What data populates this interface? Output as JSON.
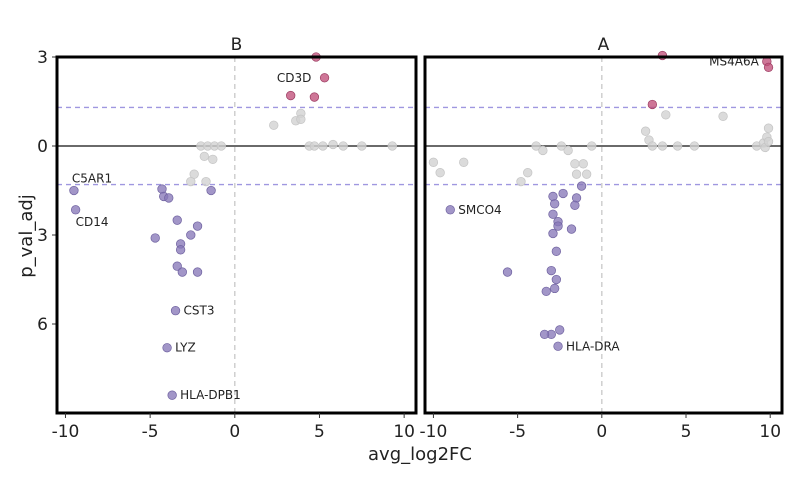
{
  "chart_data": {
    "type": "scatter",
    "xlabel": "avg_log2FC",
    "ylabel": "p_val_adj",
    "xlim": [
      -10.5,
      10.7
    ],
    "ylim": [
      -3.0,
      9.0
    ],
    "x_ticks": [
      -10,
      -5,
      0,
      5,
      10
    ],
    "x_tick_labels": [
      "-10",
      "-5",
      "0",
      "5",
      "10"
    ],
    "y_ticks": [
      -3,
      0,
      3,
      6
    ],
    "y_tick_labels": [
      "3",
      "0",
      "3",
      "6"
    ],
    "reference_lines": {
      "horizontal_dashed": [
        -1.3,
        1.3
      ],
      "vertical_dashed": 0,
      "horizontal_solid": 0
    },
    "colors": {
      "up": "#c0507a",
      "down": "#8878b8",
      "ns": "#d2d2d2",
      "threshold": "#9f97e0",
      "zero_line": "#999999"
    },
    "facets": [
      {
        "title": "B",
        "points": [
          {
            "x": 4.8,
            "y": -3.0,
            "g": "up"
          },
          {
            "x": 5.3,
            "y": -2.3,
            "g": "up"
          },
          {
            "x": 3.3,
            "y": -1.7,
            "g": "up"
          },
          {
            "x": 4.7,
            "y": -1.65,
            "g": "up"
          },
          {
            "x": 2.3,
            "y": -0.7,
            "g": "ns"
          },
          {
            "x": 3.6,
            "y": -0.85,
            "g": "ns"
          },
          {
            "x": 3.9,
            "y": -1.1,
            "g": "ns"
          },
          {
            "x": 3.9,
            "y": -0.9,
            "g": "ns"
          },
          {
            "x": 4.4,
            "y": 0.0,
            "g": "ns"
          },
          {
            "x": 4.7,
            "y": 0.0,
            "g": "ns"
          },
          {
            "x": 5.2,
            "y": 0.0,
            "g": "ns"
          },
          {
            "x": 5.8,
            "y": -0.05,
            "g": "ns"
          },
          {
            "x": 6.4,
            "y": 0.0,
            "g": "ns"
          },
          {
            "x": 7.5,
            "y": 0.0,
            "g": "ns"
          },
          {
            "x": 9.3,
            "y": 0.0,
            "g": "ns"
          },
          {
            "x": -2.0,
            "y": 0.0,
            "g": "ns"
          },
          {
            "x": -1.6,
            "y": 0.0,
            "g": "ns"
          },
          {
            "x": -1.2,
            "y": 0.0,
            "g": "ns"
          },
          {
            "x": -0.8,
            "y": 0.0,
            "g": "ns"
          },
          {
            "x": -1.8,
            "y": 0.35,
            "g": "ns"
          },
          {
            "x": -1.3,
            "y": 0.45,
            "g": "ns"
          },
          {
            "x": -2.4,
            "y": 0.95,
            "g": "ns"
          },
          {
            "x": -2.6,
            "y": 1.2,
            "g": "ns"
          },
          {
            "x": -1.7,
            "y": 1.2,
            "g": "ns"
          },
          {
            "x": -9.5,
            "y": 1.5,
            "g": "down"
          },
          {
            "x": -9.4,
            "y": 2.15,
            "g": "down"
          },
          {
            "x": -4.3,
            "y": 1.45,
            "g": "down"
          },
          {
            "x": -4.2,
            "y": 1.7,
            "g": "down"
          },
          {
            "x": -3.9,
            "y": 1.75,
            "g": "down"
          },
          {
            "x": -1.4,
            "y": 1.5,
            "g": "down"
          },
          {
            "x": -3.4,
            "y": 2.5,
            "g": "down"
          },
          {
            "x": -2.2,
            "y": 2.7,
            "g": "down"
          },
          {
            "x": -2.6,
            "y": 3.0,
            "g": "down"
          },
          {
            "x": -4.7,
            "y": 3.1,
            "g": "down"
          },
          {
            "x": -3.2,
            "y": 3.3,
            "g": "down"
          },
          {
            "x": -3.2,
            "y": 3.5,
            "g": "down"
          },
          {
            "x": -3.4,
            "y": 4.05,
            "g": "down"
          },
          {
            "x": -3.1,
            "y": 4.25,
            "g": "down"
          },
          {
            "x": -2.2,
            "y": 4.25,
            "g": "down"
          },
          {
            "x": -3.5,
            "y": 5.55,
            "g": "down"
          },
          {
            "x": -4.0,
            "y": 6.8,
            "g": "down"
          },
          {
            "x": -3.7,
            "y": 8.4,
            "g": "down"
          }
        ],
        "labels": [
          {
            "text": "CD3D",
            "x": 4.7,
            "y": -2.3
          },
          {
            "text": "C5AR1",
            "x": -9.5,
            "y": 1.5
          },
          {
            "text": "CD14",
            "x": -9.4,
            "y": 2.15
          },
          {
            "text": "CST3",
            "x": -3.5,
            "y": 5.55
          },
          {
            "text": "LYZ",
            "x": -4.0,
            "y": 6.8
          },
          {
            "text": "HLA-DPB1",
            "x": -3.7,
            "y": 8.4
          }
        ]
      },
      {
        "title": "A",
        "points": [
          {
            "x": 3.6,
            "y": -3.05,
            "g": "up"
          },
          {
            "x": 9.8,
            "y": -2.85,
            "g": "up"
          },
          {
            "x": 9.9,
            "y": -2.65,
            "g": "up"
          },
          {
            "x": 3.0,
            "y": -1.4,
            "g": "up"
          },
          {
            "x": 3.8,
            "y": -1.05,
            "g": "ns"
          },
          {
            "x": 7.2,
            "y": -1.0,
            "g": "ns"
          },
          {
            "x": 2.6,
            "y": -0.5,
            "g": "ns"
          },
          {
            "x": 2.8,
            "y": -0.2,
            "g": "ns"
          },
          {
            "x": 3.0,
            "y": 0.0,
            "g": "ns"
          },
          {
            "x": 3.6,
            "y": 0.0,
            "g": "ns"
          },
          {
            "x": 4.5,
            "y": 0.0,
            "g": "ns"
          },
          {
            "x": 5.5,
            "y": 0.0,
            "g": "ns"
          },
          {
            "x": 9.2,
            "y": 0.0,
            "g": "ns"
          },
          {
            "x": 9.6,
            "y": -0.1,
            "g": "ns"
          },
          {
            "x": 9.8,
            "y": -0.3,
            "g": "ns"
          },
          {
            "x": 9.9,
            "y": -0.6,
            "g": "ns"
          },
          {
            "x": 9.7,
            "y": 0.05,
            "g": "ns"
          },
          {
            "x": 9.9,
            "y": -0.15,
            "g": "ns"
          },
          {
            "x": -10.0,
            "y": 0.55,
            "g": "ns"
          },
          {
            "x": -9.6,
            "y": 0.9,
            "g": "ns"
          },
          {
            "x": -8.2,
            "y": 0.55,
            "g": "ns"
          },
          {
            "x": -4.4,
            "y": 0.9,
            "g": "ns"
          },
          {
            "x": -4.8,
            "y": 1.2,
            "g": "ns"
          },
          {
            "x": -3.9,
            "y": 0.0,
            "g": "ns"
          },
          {
            "x": -3.5,
            "y": 0.15,
            "g": "ns"
          },
          {
            "x": -2.4,
            "y": 0.0,
            "g": "ns"
          },
          {
            "x": -2.0,
            "y": 0.15,
            "g": "ns"
          },
          {
            "x": -0.6,
            "y": 0.0,
            "g": "ns"
          },
          {
            "x": -1.6,
            "y": 0.6,
            "g": "ns"
          },
          {
            "x": -1.1,
            "y": 0.6,
            "g": "ns"
          },
          {
            "x": -1.5,
            "y": 0.95,
            "g": "ns"
          },
          {
            "x": -0.9,
            "y": 0.95,
            "g": "ns"
          },
          {
            "x": -9.0,
            "y": 2.15,
            "g": "down"
          },
          {
            "x": -1.2,
            "y": 1.35,
            "g": "down"
          },
          {
            "x": -2.9,
            "y": 1.7,
            "g": "down"
          },
          {
            "x": -2.3,
            "y": 1.6,
            "g": "down"
          },
          {
            "x": -1.5,
            "y": 1.75,
            "g": "down"
          },
          {
            "x": -2.8,
            "y": 1.95,
            "g": "down"
          },
          {
            "x": -1.6,
            "y": 2.0,
            "g": "down"
          },
          {
            "x": -2.9,
            "y": 2.3,
            "g": "down"
          },
          {
            "x": -2.6,
            "y": 2.55,
            "g": "down"
          },
          {
            "x": -2.6,
            "y": 2.7,
            "g": "down"
          },
          {
            "x": -1.8,
            "y": 2.8,
            "g": "down"
          },
          {
            "x": -2.9,
            "y": 2.95,
            "g": "down"
          },
          {
            "x": -2.7,
            "y": 3.55,
            "g": "down"
          },
          {
            "x": -5.6,
            "y": 4.25,
            "g": "down"
          },
          {
            "x": -3.0,
            "y": 4.2,
            "g": "down"
          },
          {
            "x": -2.7,
            "y": 4.5,
            "g": "down"
          },
          {
            "x": -2.8,
            "y": 4.8,
            "g": "down"
          },
          {
            "x": -3.3,
            "y": 4.9,
            "g": "down"
          },
          {
            "x": -2.5,
            "y": 6.2,
            "g": "down"
          },
          {
            "x": -3.0,
            "y": 6.35,
            "g": "down"
          },
          {
            "x": -3.4,
            "y": 6.35,
            "g": "down"
          },
          {
            "x": -2.6,
            "y": 6.75,
            "g": "down"
          }
        ],
        "labels": [
          {
            "text": "MS4A6A",
            "x": 9.8,
            "y": -2.85
          },
          {
            "text": "SMCO4",
            "x": -9.0,
            "y": 2.15
          },
          {
            "text": "HLA-DRA",
            "x": -2.6,
            "y": 6.75
          }
        ]
      }
    ]
  }
}
